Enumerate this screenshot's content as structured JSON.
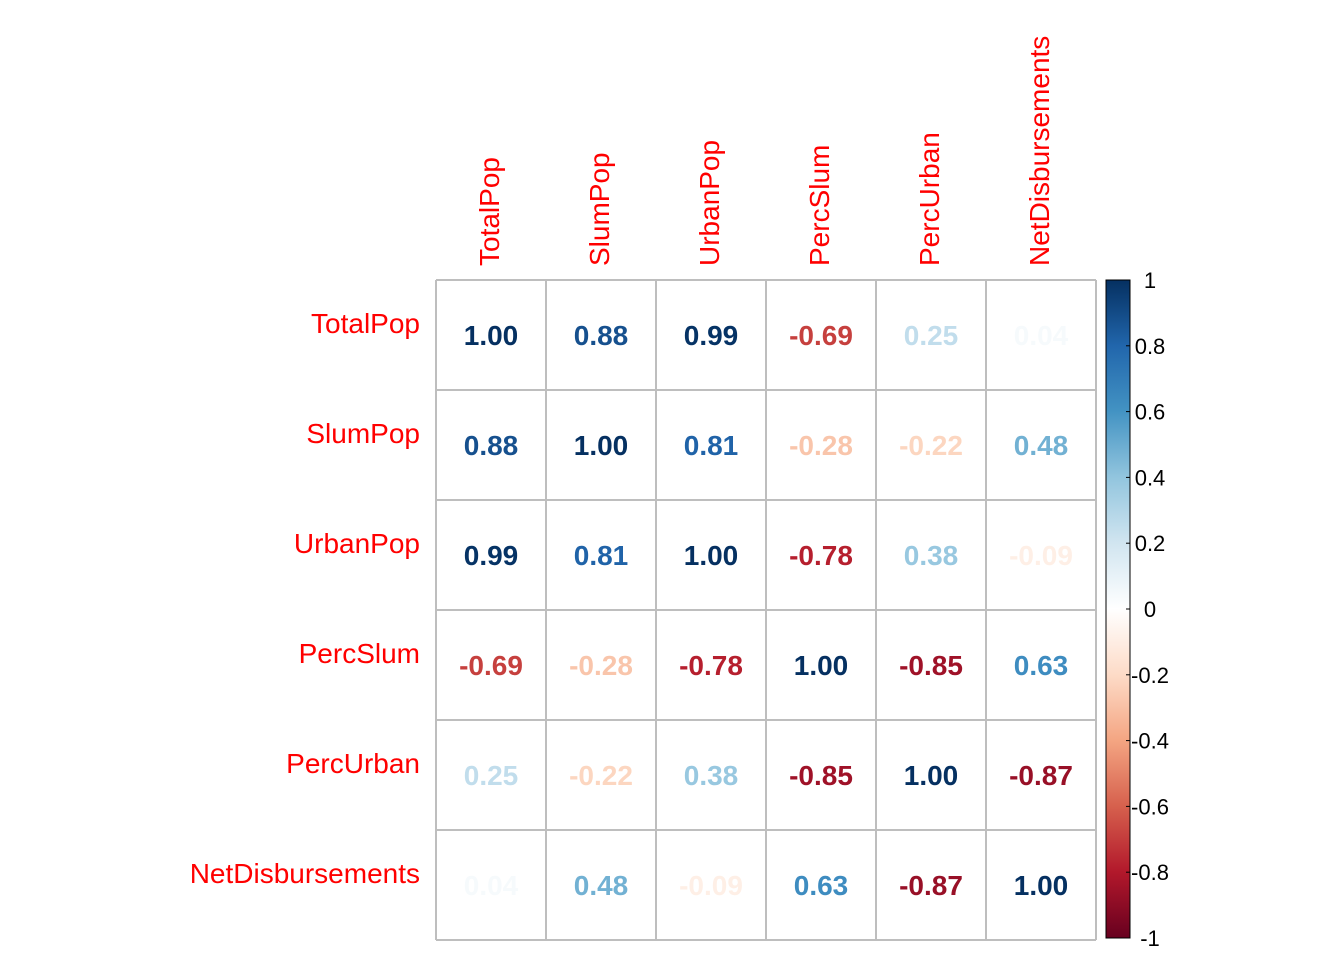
{
  "chart_data": {
    "type": "heatmap",
    "variables": [
      "TotalPop",
      "SlumPop",
      "UrbanPop",
      "PercSlum",
      "PercUrban",
      "NetDisbursements"
    ],
    "matrix": [
      [
        1.0,
        0.88,
        0.99,
        -0.69,
        0.25,
        0.04
      ],
      [
        0.88,
        1.0,
        0.81,
        -0.28,
        -0.22,
        0.48
      ],
      [
        0.99,
        0.81,
        1.0,
        -0.78,
        0.38,
        -0.09
      ],
      [
        -0.69,
        -0.28,
        -0.78,
        1.0,
        -0.85,
        0.63
      ],
      [
        0.25,
        -0.22,
        0.38,
        -0.85,
        1.0,
        -0.87
      ],
      [
        0.04,
        0.48,
        -0.09,
        0.63,
        -0.87,
        1.0
      ]
    ],
    "value_labels": [
      [
        "1.00",
        "0.88",
        "0.99",
        "-0.69",
        "0.25",
        "0.04"
      ],
      [
        "0.88",
        "1.00",
        "0.81",
        "-0.28",
        "-0.22",
        "0.48"
      ],
      [
        "0.99",
        "0.81",
        "1.00",
        "-0.78",
        "0.38",
        "-0.09"
      ],
      [
        "-0.69",
        "-0.28",
        "-0.78",
        "1.00",
        "-0.85",
        "0.63"
      ],
      [
        "0.25",
        "-0.22",
        "0.38",
        "-0.85",
        "1.00",
        "-0.87"
      ],
      [
        "0.04",
        "0.48",
        "-0.09",
        "0.63",
        "-0.87",
        "1.00"
      ]
    ],
    "label_color": "#ff0000",
    "grid_color": "#bebebe",
    "colorbar": {
      "range": [
        -1,
        1
      ],
      "ticks": [
        1,
        0.8,
        0.6,
        0.4,
        0.2,
        0,
        -0.2,
        -0.4,
        -0.6,
        -0.8,
        -1
      ],
      "tick_labels": [
        "1",
        "0.8",
        "0.6",
        "0.4",
        "0.2",
        "0",
        "-0.2",
        "-0.4",
        "-0.6",
        "-0.8",
        "-1"
      ],
      "palette": [
        "#67001F",
        "#B2182B",
        "#D6604D",
        "#F4A582",
        "#FDDBC7",
        "#FFFFFF",
        "#D1E5F0",
        "#92C5DE",
        "#4393C3",
        "#2166AC",
        "#053061"
      ]
    }
  }
}
